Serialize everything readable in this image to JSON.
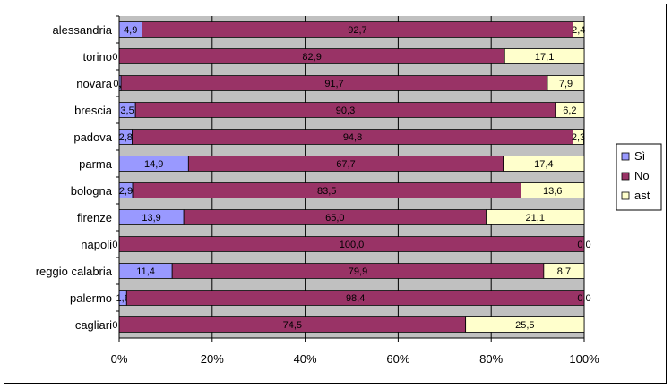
{
  "chart_data": {
    "type": "bar",
    "orientation": "horizontal",
    "stacked": "percent",
    "categories": [
      "alessandria",
      "torino",
      "novara",
      "brescia",
      "padova",
      "parma",
      "bologna",
      "firenze",
      "napoli",
      "reggio calabria",
      "palermo",
      "cagliari"
    ],
    "series": [
      {
        "name": "Sì",
        "color": "#9999ff",
        "values": [
          4.9,
          0.0,
          0.4,
          3.5,
          2.8,
          14.9,
          2.9,
          13.9,
          0.0,
          11.4,
          1.6,
          0.0
        ],
        "labels": [
          "4,9",
          "0,0",
          "0,4",
          "3,5",
          "2,8",
          "14,9",
          "2,9",
          "13,9",
          "0,0",
          "11,4",
          "1,6",
          "0,0"
        ]
      },
      {
        "name": "No",
        "color": "#993366",
        "values": [
          92.7,
          82.9,
          91.7,
          90.3,
          94.8,
          67.7,
          83.5,
          65.0,
          100.0,
          79.9,
          98.4,
          74.5
        ],
        "labels": [
          "92,7",
          "82,9",
          "91,7",
          "90,3",
          "94,8",
          "67,7",
          "83,5",
          "65,0",
          "100,0",
          "79,9",
          "98,4",
          "74,5"
        ]
      },
      {
        "name": "ast",
        "color": "#ffffcc",
        "values": [
          2.4,
          17.1,
          7.9,
          6.2,
          2.3,
          17.4,
          13.6,
          21.1,
          0.0,
          8.7,
          0.0,
          25.5
        ],
        "labels": [
          "2,4",
          "17,1",
          "7,9",
          "6,2",
          "2,3",
          "17,4",
          "13,6",
          "21,1",
          "0,0",
          "8,7",
          "0,0",
          "25,5"
        ]
      }
    ],
    "x_ticks": [
      "0%",
      "20%",
      "40%",
      "60%",
      "80%",
      "100%"
    ],
    "xlim": [
      0,
      100
    ],
    "grid": true,
    "plot_background": "#c0c0c0",
    "legend_position": "right"
  }
}
